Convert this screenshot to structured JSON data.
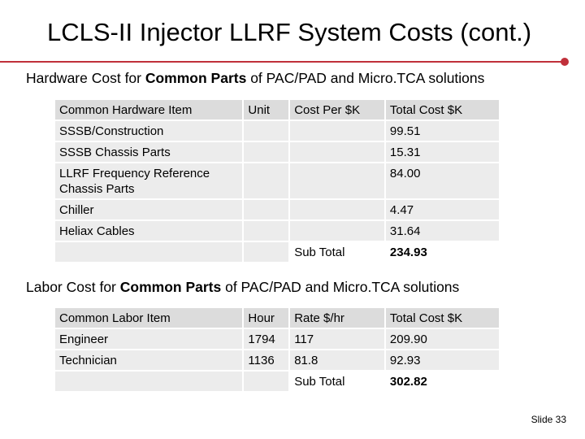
{
  "title": "LCLS-II Injector LLRF System Costs (cont.)",
  "hardware": {
    "heading_pre": "Hardware Cost for ",
    "heading_bold": "Common Parts",
    "heading_post": " of PAC/PAD and Micro.TCA solutions",
    "headers": [
      "Common Hardware Item",
      "Unit",
      "Cost Per $K",
      "Total Cost $K"
    ],
    "rows": [
      {
        "item": "SSSB/Construction",
        "unit": "",
        "cost": "",
        "total": "99.51"
      },
      {
        "item": "SSSB Chassis Parts",
        "unit": "",
        "cost": "",
        "total": "15.31"
      },
      {
        "item": "LLRF Frequency Reference Chassis Parts",
        "unit": "",
        "cost": "",
        "total": "84.00"
      },
      {
        "item": "Chiller",
        "unit": "",
        "cost": "",
        "total": "4.47"
      },
      {
        "item": "Heliax Cables",
        "unit": "",
        "cost": "",
        "total": "31.64"
      }
    ],
    "subtotal_label": "Sub Total",
    "subtotal_value": "234.93"
  },
  "labor": {
    "heading_pre": "Labor Cost for ",
    "heading_bold": "Common Parts",
    "heading_post": " of PAC/PAD and Micro.TCA solutions",
    "headers": [
      "Common Labor Item",
      "Hour",
      "Rate $/hr",
      "Total Cost $K"
    ],
    "rows": [
      {
        "item": "Engineer",
        "hour": "1794",
        "rate": "117",
        "total": "209.90"
      },
      {
        "item": "Technician",
        "hour": "1136",
        "rate": "81.8",
        "total": "92.93"
      }
    ],
    "subtotal_label": "Sub Total",
    "subtotal_value": "302.82"
  },
  "slide_number": "Slide 33",
  "colors": {
    "accent_rule": "#c0303a",
    "cell_bg": "#ececec"
  }
}
